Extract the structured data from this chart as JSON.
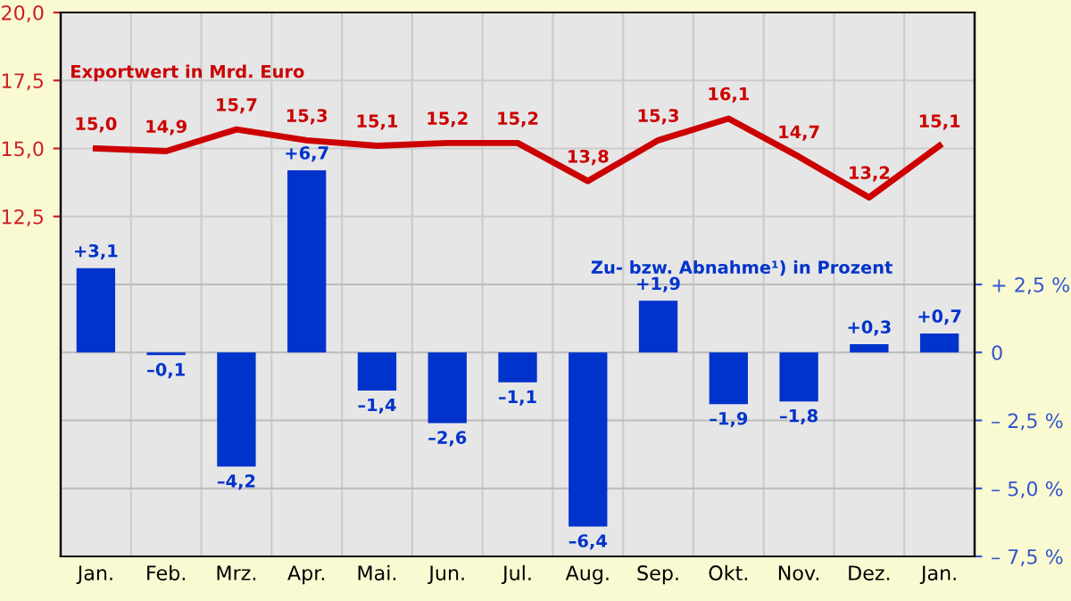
{
  "chart_data": {
    "type": "bar",
    "categories": [
      "Jan.",
      "Feb.",
      "Mrz.",
      "Apr.",
      "Mai.",
      "Jun.",
      "Jul.",
      "Aug.",
      "Sep.",
      "Okt.",
      "Nov.",
      "Dez.",
      "Jan."
    ],
    "series": [
      {
        "name": "Exportwert in Mrd. Euro",
        "type": "line",
        "color": "#cc0000",
        "values": [
          15.0,
          14.9,
          15.7,
          15.3,
          15.1,
          15.2,
          15.2,
          13.8,
          15.3,
          16.1,
          14.7,
          13.2,
          15.1
        ],
        "value_labels": [
          "15,0",
          "14,9",
          "15,7",
          "15,3",
          "15,1",
          "15,2",
          "15,2",
          "13,8",
          "15,3",
          "16,1",
          "14,7",
          "13,2",
          "15,1"
        ]
      },
      {
        "name": "Zu- bzw. Abnahme¹) in Prozent",
        "axis": "y2",
        "color": "#0033cc",
        "values": [
          3.1,
          -0.1,
          -4.2,
          6.7,
          -1.4,
          -2.6,
          -1.1,
          -6.4,
          1.9,
          -1.9,
          -1.8,
          0.3,
          0.7
        ],
        "value_labels": [
          "+3,1",
          "–0,1",
          "–4,2",
          "+6,7",
          "–1,4",
          "–2,6",
          "–1,1",
          "–6,4",
          "+1,9",
          "–1,9",
          "–1,8",
          "+0,3",
          "+0,7"
        ]
      }
    ],
    "ylim": [
      0,
      20
    ],
    "yticks": [
      {
        "value": 12.5,
        "label": "12,5"
      },
      {
        "value": 15,
        "label": "15,0"
      },
      {
        "value": 17.5,
        "label": "17,5"
      },
      {
        "value": 20,
        "label": "20,0"
      }
    ],
    "y2lim": [
      -7.5,
      12.5
    ],
    "y2ticks": [
      {
        "value": -7.5,
        "label": "– 7,5 %"
      },
      {
        "value": -5,
        "label": "– 5,0 %"
      },
      {
        "value": -2.5,
        "label": "– 2,5 %"
      },
      {
        "value": 0,
        "label": "0"
      },
      {
        "value": 2.5,
        "label": "+ 2,5 %"
      }
    ],
    "grid": true,
    "legend": false,
    "marker": "none",
    "line_style": "solid"
  }
}
